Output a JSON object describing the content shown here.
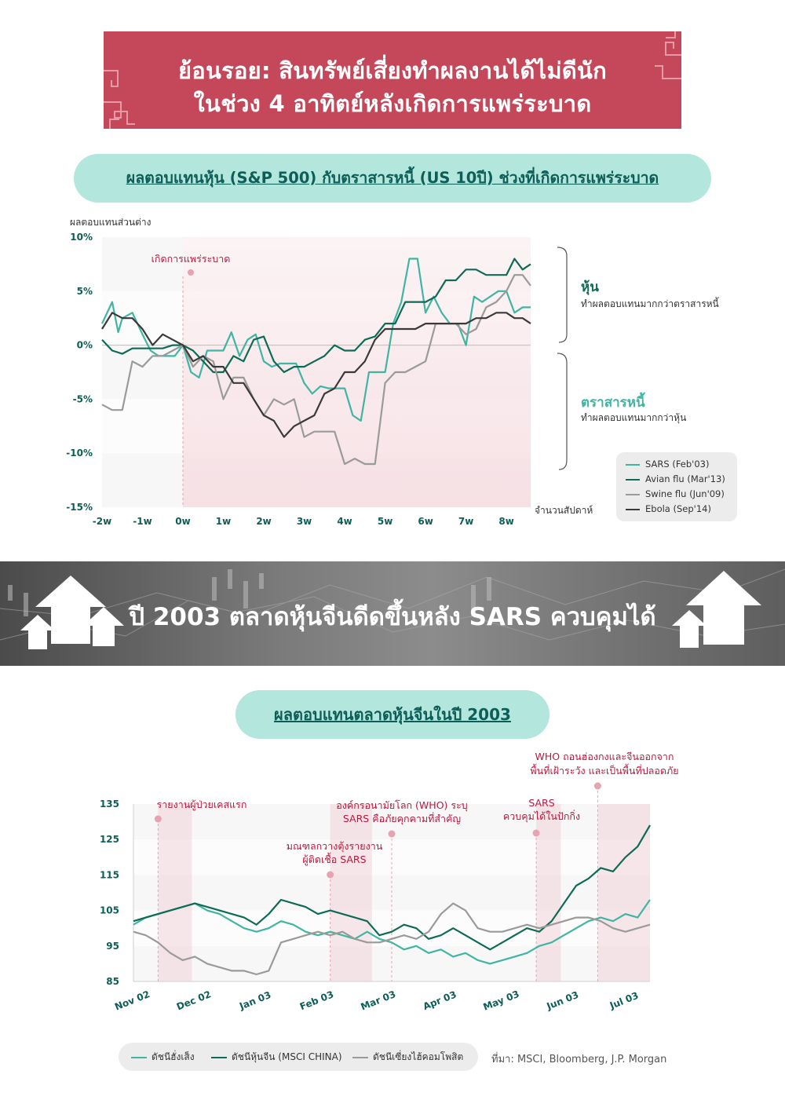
{
  "header": {
    "title_line1": "ย้อนรอย: สินทรัพย์เสี่ยงทำผลงานได้ไม่ดีนัก",
    "title_line2": "ในช่วง 4 อาทิตย์หลังเกิดการแพร่ระบาด"
  },
  "chart1": {
    "title": "ผลตอบแทนหุ้น (S&P 500) กับตราสารหนี้ (US 10ปี) ช่วงที่เกิดการแพร่ระบาด",
    "ylabel": "ผลตอบแทนส่วนต่าง",
    "xlabel": "จำนวนสัปดาห์",
    "annotation_outbreak": "เกิดการแพร่ระบาด",
    "bracket_stocks_title": "หุ้น",
    "bracket_stocks_desc": "ทำผลตอบแทนมากกว่าตราสารหนี้",
    "bracket_bonds_title": "ตราสารหนี้",
    "bracket_bonds_desc": "ทำผลตอบแทนมากกว่าหุ้น",
    "legend": [
      "SARS (Feb'03)",
      "Avian flu (Mar'13)",
      "Swine flu (Jun'09)",
      "Ebola (Sep'14)"
    ]
  },
  "banner_strip": {
    "headline": "ปี 2003 ตลาดหุ้นจีนดีดขึ้นหลัง SARS ควบคุมได้"
  },
  "chart2": {
    "title": "ผลตอบแทนตลาดหุ้นจีนในปี 2003",
    "annotations": [
      {
        "lines": [
          "รายงานผู้ป่วยเคสแรก"
        ]
      },
      {
        "lines": [
          "มณฑลกวางตุ้งรายงาน",
          "ผู้ติดเชื้อ SARS"
        ]
      },
      {
        "lines": [
          "องค์กรอนามัยโลก (WHO) ระบุ",
          "SARS คือภัยคุกคามที่สำคัญ"
        ]
      },
      {
        "lines": [
          "SARS",
          "ควบคุมได้ในปักกิ่ง"
        ]
      },
      {
        "lines": [
          "WHO ถอนฮ่องกงและจีนออกจาก",
          "พื้นที่เฝ้าระวัง และเป็นพื้นที่ปลอดภัย"
        ]
      }
    ],
    "legend": [
      "ดัชนีฮั่งเส็ง",
      "ดัชนีหุ้นจีน (MSCI CHINA)",
      "ดัชนีเซี่ยงไฮ้คอมโพสิต"
    ],
    "source": "ที่มา: MSCI, Bloomberg, J.P. Morgan"
  },
  "colors": {
    "banner": "#c5485a",
    "pill": "#b3e6dc",
    "teal_dark": "#0e5e58",
    "sars": "#3fb5a2",
    "avian": "#0e6b55",
    "swine": "#9a9a9a",
    "ebola": "#3a3a3a",
    "accent_red": "#b8193f"
  },
  "chart_data": [
    {
      "type": "line",
      "title": "ผลตอบแทนหุ้น (S&P 500) กับตราสารหนี้ (US 10ปี) ช่วงที่เกิดการแพร่ระบาด",
      "ylabel": "ผลตอบแทนส่วนต่าง",
      "xlabel": "จำนวนสัปดาห์",
      "x_ticks": [
        "-2w",
        "-1w",
        "0w",
        "1w",
        "2w",
        "3w",
        "4w",
        "5w",
        "6w",
        "7w",
        "8w"
      ],
      "y_ticks": [
        "10%",
        "5%",
        "0%",
        "-5%",
        "-10%",
        "-15%"
      ],
      "ylim": [
        -15,
        10
      ],
      "xlim": [
        -2,
        8.6
      ],
      "legend_position": "bottom-right",
      "series": [
        {
          "name": "SARS (Feb'03)",
          "color": "#3fb5a2",
          "x": [
            -2,
            -1.75,
            -1.6,
            -1.5,
            -1.25,
            -1.0,
            -0.8,
            -0.6,
            -0.4,
            -0.2,
            0,
            0.2,
            0.4,
            0.6,
            0.8,
            1.0,
            1.2,
            1.4,
            1.6,
            1.8,
            2.0,
            2.2,
            2.4,
            2.6,
            2.8,
            3.0,
            3.2,
            3.4,
            3.6,
            3.8,
            4.0,
            4.2,
            4.4,
            4.6,
            4.8,
            5.0,
            5.2,
            5.4,
            5.6,
            5.8,
            6.0,
            6.2,
            6.4,
            6.6,
            6.8,
            7.0,
            7.2,
            7.4,
            7.6,
            7.8,
            8.0,
            8.2,
            8.4,
            8.6
          ],
          "y": [
            2.0,
            4.0,
            1.2,
            2.5,
            3.0,
            1.0,
            -0.5,
            -1.0,
            -1.0,
            -1.0,
            0.0,
            -2.5,
            -3.0,
            -0.5,
            -0.5,
            -0.5,
            1.2,
            -1.0,
            0.5,
            1.0,
            -1.5,
            -2.0,
            -1.7,
            -1.7,
            -1.7,
            -3.5,
            -4.5,
            -3.8,
            -4.0,
            -4.0,
            -4.0,
            -6.5,
            -7.0,
            -2.5,
            -2.5,
            -2.5,
            2.0,
            4.0,
            8.0,
            8.0,
            3.0,
            4.5,
            3.0,
            2.0,
            2.0,
            0.0,
            4.5,
            4.0,
            4.5,
            5.0,
            5.0,
            3.0,
            3.5,
            3.5
          ]
        },
        {
          "name": "Avian flu (Mar'13)",
          "color": "#0e6b55",
          "x": [
            -2,
            -1.75,
            -1.5,
            -1.25,
            -1.0,
            -0.75,
            -0.5,
            -0.25,
            0,
            0.25,
            0.5,
            0.75,
            1.0,
            1.25,
            1.5,
            1.75,
            2.0,
            2.25,
            2.5,
            2.75,
            3.0,
            3.25,
            3.5,
            3.75,
            4.0,
            4.25,
            4.5,
            4.75,
            5.0,
            5.25,
            5.5,
            5.75,
            6.0,
            6.25,
            6.5,
            6.75,
            7.0,
            7.25,
            7.5,
            7.75,
            8.0,
            8.2,
            8.4,
            8.6
          ],
          "y": [
            0.5,
            -0.5,
            -0.8,
            -0.3,
            -0.3,
            -0.3,
            -0.3,
            0.0,
            0.0,
            -0.5,
            -1.5,
            -2.5,
            -2.5,
            -1.0,
            -1.5,
            0.5,
            0.8,
            -1.5,
            -2.5,
            -2.0,
            -2.0,
            -1.5,
            -1.0,
            0.0,
            -0.5,
            -0.5,
            0.5,
            0.8,
            2.0,
            2.0,
            4.0,
            4.0,
            4.0,
            4.5,
            6.0,
            6.0,
            7.0,
            7.0,
            6.5,
            6.5,
            6.5,
            8.0,
            7.0,
            7.5
          ]
        },
        {
          "name": "Swine flu (Jun'09)",
          "color": "#9a9a9a",
          "x": [
            -2,
            -1.75,
            -1.5,
            -1.25,
            -1.0,
            -0.75,
            -0.5,
            -0.25,
            0,
            0.25,
            0.5,
            0.75,
            1.0,
            1.25,
            1.5,
            1.75,
            2.0,
            2.25,
            2.5,
            2.75,
            3.0,
            3.25,
            3.5,
            3.75,
            4.0,
            4.25,
            4.5,
            4.75,
            5.0,
            5.25,
            5.5,
            5.75,
            6.0,
            6.25,
            6.5,
            6.75,
            7.0,
            7.25,
            7.5,
            7.75,
            8.0,
            8.2,
            8.4,
            8.6
          ],
          "y": [
            -5.5,
            -6.0,
            -6.0,
            -1.5,
            -2.0,
            -1.0,
            -1.0,
            -0.5,
            0.0,
            -2.0,
            -1.0,
            -1.5,
            -5.0,
            -3.0,
            -3.0,
            -5.0,
            -6.5,
            -5.0,
            -5.5,
            -5.0,
            -8.5,
            -8.0,
            -8.0,
            -8.0,
            -11.0,
            -10.5,
            -11.0,
            -11.0,
            -3.5,
            -2.5,
            -2.5,
            -2.0,
            -1.5,
            2.0,
            2.0,
            2.0,
            1.0,
            1.5,
            3.5,
            4.0,
            5.0,
            6.5,
            6.5,
            5.5
          ]
        },
        {
          "name": "Ebola (Sep'14)",
          "color": "#3a3a3a",
          "x": [
            -2,
            -1.75,
            -1.5,
            -1.25,
            -1.0,
            -0.75,
            -0.5,
            -0.25,
            0,
            0.25,
            0.5,
            0.75,
            1.0,
            1.25,
            1.5,
            1.75,
            2.0,
            2.25,
            2.5,
            2.75,
            3.0,
            3.25,
            3.5,
            3.75,
            4.0,
            4.25,
            4.5,
            4.75,
            5.0,
            5.25,
            5.5,
            5.75,
            6.0,
            6.25,
            6.5,
            6.75,
            7.0,
            7.25,
            7.5,
            7.75,
            8.0,
            8.2,
            8.4,
            8.6
          ],
          "y": [
            1.5,
            3.0,
            2.5,
            2.5,
            1.5,
            0.0,
            1.0,
            0.5,
            0.0,
            -1.5,
            -1.0,
            -2.0,
            -2.0,
            -3.5,
            -3.5,
            -5.0,
            -6.5,
            -7.0,
            -8.5,
            -7.5,
            -7.0,
            -6.5,
            -4.5,
            -4.0,
            -2.5,
            -2.5,
            -1.5,
            0.5,
            1.5,
            1.5,
            1.5,
            1.5,
            2.0,
            2.0,
            2.0,
            2.0,
            2.0,
            2.5,
            2.5,
            3.0,
            3.0,
            2.5,
            2.5,
            2.0
          ]
        }
      ]
    },
    {
      "type": "line",
      "title": "ผลตอบแทนตลาดหุ้นจีนในปี 2003",
      "x_ticks": [
        "Nov 02",
        "Dec 02",
        "Jan 03",
        "Feb 03",
        "Mar 03",
        "Apr 03",
        "May 03",
        "Jun 03",
        "Jul 03"
      ],
      "y_ticks": [
        135,
        125,
        115,
        105,
        95,
        85
      ],
      "ylim": [
        85,
        135
      ],
      "xlim": [
        0,
        8.4
      ],
      "x_unit": "months since Nov 02",
      "legend_position": "bottom",
      "series": [
        {
          "name": "ดัชนีฮั่งเส็ง",
          "color": "#3fb5a2",
          "x": [
            0,
            0.2,
            0.4,
            0.6,
            0.8,
            1.0,
            1.2,
            1.4,
            1.6,
            1.8,
            2.0,
            2.2,
            2.4,
            2.6,
            2.8,
            3.0,
            3.2,
            3.4,
            3.6,
            3.8,
            4.0,
            4.2,
            4.4,
            4.6,
            4.8,
            5.0,
            5.2,
            5.4,
            5.6,
            5.8,
            6.0,
            6.2,
            6.4,
            6.6,
            6.8,
            7.0,
            7.2,
            7.4,
            7.6,
            7.8,
            8.0,
            8.2,
            8.4
          ],
          "y": [
            101,
            103,
            104,
            105,
            106,
            107,
            105,
            104,
            102,
            100,
            99,
            100,
            102,
            101,
            99,
            98,
            99,
            98,
            97,
            99,
            97,
            96,
            94,
            95,
            93,
            94,
            92,
            93,
            91,
            90,
            91,
            92,
            93,
            95,
            96,
            98,
            100,
            102,
            103,
            102,
            104,
            103,
            108
          ]
        },
        {
          "name": "ดัชนีหุ้นจีน (MSCI CHINA)",
          "color": "#0e6b55",
          "x": [
            0,
            0.2,
            0.4,
            0.6,
            0.8,
            1.0,
            1.2,
            1.4,
            1.6,
            1.8,
            2.0,
            2.2,
            2.4,
            2.6,
            2.8,
            3.0,
            3.2,
            3.4,
            3.6,
            3.8,
            4.0,
            4.2,
            4.4,
            4.6,
            4.8,
            5.0,
            5.2,
            5.4,
            5.6,
            5.8,
            6.0,
            6.2,
            6.4,
            6.6,
            6.8,
            7.0,
            7.2,
            7.4,
            7.6,
            7.8,
            8.0,
            8.2,
            8.4
          ],
          "y": [
            102,
            103,
            104,
            105,
            106,
            107,
            106,
            105,
            104,
            103,
            101,
            104,
            108,
            107,
            106,
            104,
            105,
            104,
            103,
            102,
            98,
            99,
            101,
            100,
            97,
            98,
            100,
            98,
            96,
            94,
            96,
            98,
            100,
            99,
            102,
            107,
            112,
            114,
            117,
            116,
            120,
            123,
            129
          ]
        },
        {
          "name": "ดัชนีเซี่ยงไฮ้คอมโพสิต",
          "color": "#9a9a9a",
          "x": [
            0,
            0.2,
            0.4,
            0.6,
            0.8,
            1.0,
            1.2,
            1.4,
            1.6,
            1.8,
            2.0,
            2.2,
            2.4,
            2.6,
            2.8,
            3.0,
            3.2,
            3.4,
            3.6,
            3.8,
            4.0,
            4.2,
            4.4,
            4.6,
            4.8,
            5.0,
            5.2,
            5.4,
            5.6,
            5.8,
            6.0,
            6.2,
            6.4,
            6.6,
            6.8,
            7.0,
            7.2,
            7.4,
            7.6,
            7.8,
            8.0,
            8.2,
            8.4
          ],
          "y": [
            99,
            98,
            96,
            93,
            91,
            92,
            90,
            89,
            88,
            88,
            87,
            88,
            96,
            97,
            98,
            99,
            98,
            99,
            97,
            96,
            96,
            97,
            98,
            97,
            99,
            104,
            107,
            105,
            100,
            99,
            99,
            100,
            101,
            100,
            101,
            102,
            103,
            103,
            102,
            100,
            99,
            100,
            101
          ]
        }
      ]
    }
  ]
}
